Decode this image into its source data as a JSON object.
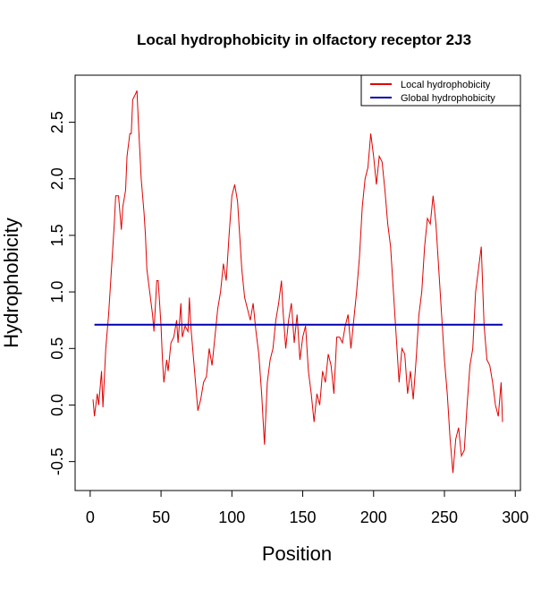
{
  "chart_data": {
    "type": "line",
    "title": "Local hydrophobicity in olfactory receptor 2J3",
    "x_label": "Position",
    "y_label": "Hydrophobicity",
    "xlim": [
      -10.64,
      303.64
    ],
    "ylim": [
      -0.756,
      2.916
    ],
    "xticks": [
      0,
      50,
      100,
      150,
      200,
      250,
      300
    ],
    "yticks": [
      -0.5,
      {
        "value": 0,
        "label": "0.0"
      },
      0.5,
      {
        "value": 1,
        "label": "1.0"
      },
      1.5,
      {
        "value": 2,
        "label": "2.0"
      },
      2.5
    ],
    "legend": "top-right",
    "series": [
      {
        "name": "Local hydrophobicity",
        "color": "#e00000",
        "x": [
          2,
          3,
          5,
          6,
          8,
          9,
          11,
          13,
          15,
          17,
          18,
          20,
          22,
          23,
          25,
          26,
          28,
          29,
          30,
          32,
          33,
          34,
          36,
          38,
          39,
          40,
          42,
          44,
          45,
          47,
          48,
          50,
          51,
          52,
          54,
          55,
          57,
          59,
          61,
          62,
          64,
          65,
          67,
          69,
          70,
          71,
          73,
          75,
          76,
          78,
          80,
          82,
          84,
          86,
          88,
          90,
          92,
          94,
          96,
          98,
          100,
          102,
          104,
          105,
          107,
          109,
          111,
          113,
          115,
          117,
          119,
          121,
          123,
          125,
          127,
          129,
          131,
          133,
          135,
          136,
          138,
          140,
          142,
          144,
          146,
          148,
          150,
          152,
          154,
          156,
          158,
          160,
          162,
          164,
          166,
          168,
          170,
          172,
          174,
          176,
          178,
          180,
          182,
          184,
          186,
          188,
          190,
          192,
          194,
          196,
          198,
          200,
          202,
          204,
          206,
          208,
          210,
          212,
          214,
          216,
          218,
          220,
          222,
          224,
          226,
          228,
          230,
          232,
          234,
          236,
          238,
          240,
          242,
          244,
          246,
          248,
          250,
          252,
          254,
          256,
          258,
          260,
          262,
          264,
          266,
          268,
          270,
          272,
          274,
          276,
          278,
          280,
          282,
          284,
          286,
          288,
          290,
          291
        ],
        "values": [
          0.05,
          -0.1,
          0.1,
          0.0,
          0.3,
          -0.02,
          0.5,
          0.8,
          1.2,
          1.6,
          1.85,
          1.85,
          1.55,
          1.75,
          1.9,
          2.2,
          2.4,
          2.4,
          2.7,
          2.75,
          2.78,
          2.5,
          2.0,
          1.7,
          1.5,
          1.2,
          1.0,
          0.8,
          0.65,
          1.1,
          1.1,
          0.7,
          0.4,
          0.2,
          0.4,
          0.3,
          0.55,
          0.6,
          0.75,
          0.55,
          0.9,
          0.6,
          0.7,
          0.65,
          0.95,
          0.7,
          0.4,
          0.1,
          -0.05,
          0.05,
          0.2,
          0.25,
          0.5,
          0.35,
          0.6,
          0.85,
          1.0,
          1.25,
          1.1,
          1.5,
          1.85,
          1.95,
          1.8,
          1.6,
          1.2,
          0.95,
          0.85,
          0.75,
          0.9,
          0.65,
          0.45,
          0.1,
          -0.35,
          0.2,
          0.4,
          0.5,
          0.75,
          0.9,
          1.1,
          0.85,
          0.5,
          0.75,
          0.9,
          0.55,
          0.8,
          0.4,
          0.6,
          0.7,
          0.3,
          0.1,
          -0.15,
          0.1,
          0.0,
          0.3,
          0.2,
          0.45,
          0.35,
          0.1,
          0.6,
          0.6,
          0.55,
          0.7,
          0.8,
          0.5,
          0.75,
          1.0,
          1.3,
          1.75,
          2.0,
          2.1,
          2.4,
          2.2,
          1.95,
          2.2,
          2.15,
          1.9,
          1.6,
          1.4,
          1.0,
          0.6,
          0.2,
          0.5,
          0.45,
          0.1,
          0.3,
          0.05,
          0.4,
          0.8,
          1.0,
          1.4,
          1.65,
          1.6,
          1.85,
          1.6,
          1.2,
          0.8,
          0.4,
          0.1,
          -0.3,
          -0.6,
          -0.3,
          -0.2,
          -0.45,
          -0.4,
          0.0,
          0.35,
          0.5,
          1.0,
          1.2,
          1.4,
          0.7,
          0.4,
          0.35,
          0.2,
          0.0,
          -0.1,
          0.2,
          -0.15
        ]
      },
      {
        "name": "Global hydrophobicity",
        "color": "#0000b0",
        "x": [
          3,
          291
        ],
        "values": [
          0.71,
          0.71
        ]
      }
    ]
  }
}
